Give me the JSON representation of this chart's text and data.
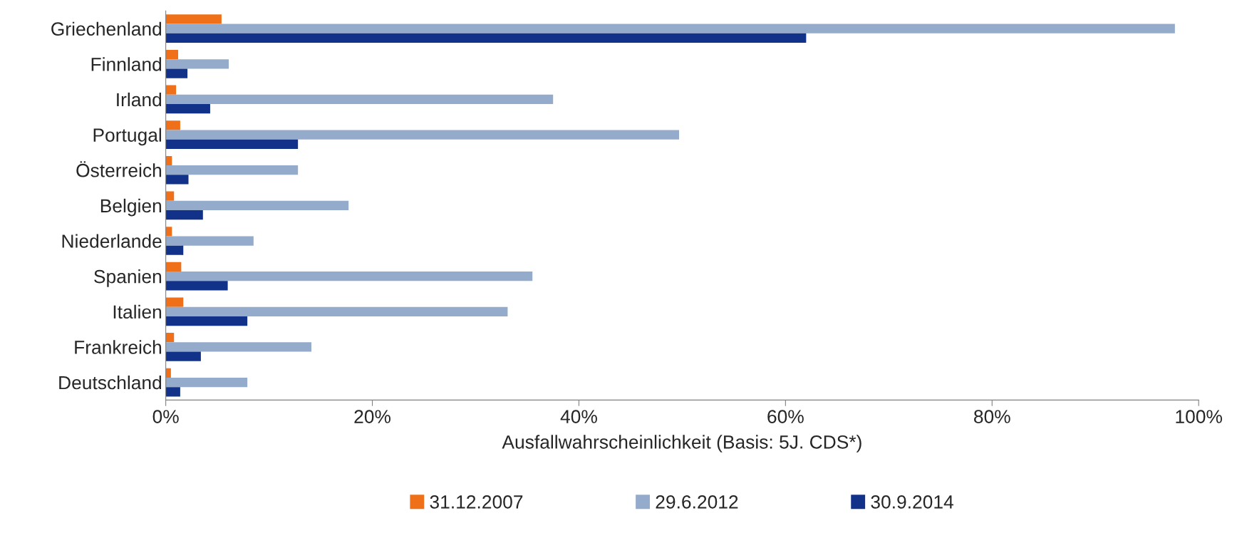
{
  "chart_data": {
    "type": "bar",
    "orientation": "horizontal",
    "xlabel": "Ausfallwahrscheinlichkeit (Basis: 5J. CDS*)",
    "categories": [
      "Griechenland",
      "Finnland",
      "Irland",
      "Portugal",
      "Österreich",
      "Belgien",
      "Niederlande",
      "Spanien",
      "Italien",
      "Frankreich",
      "Deutschland"
    ],
    "series": [
      {
        "name": "31.12.2007",
        "color": "#f07019",
        "values": [
          5.4,
          1.2,
          1.0,
          1.4,
          0.6,
          0.8,
          0.6,
          1.5,
          1.7,
          0.8,
          0.5
        ]
      },
      {
        "name": "29.6.2012",
        "color": "#95abcb",
        "values": [
          97.7,
          6.1,
          37.5,
          49.7,
          12.8,
          17.7,
          8.5,
          35.5,
          33.1,
          14.1,
          7.9
        ]
      },
      {
        "name": "30.9.2014",
        "color": "#12328a",
        "values": [
          62.0,
          2.1,
          4.3,
          12.8,
          2.2,
          3.6,
          1.7,
          6.0,
          7.9,
          3.4,
          1.4
        ]
      }
    ],
    "xlim": [
      0,
      100
    ],
    "xticks": [
      {
        "value": 0,
        "label": "0%"
      },
      {
        "value": 20,
        "label": "20%"
      },
      {
        "value": 40,
        "label": "40%"
      },
      {
        "value": 60,
        "label": "60%"
      },
      {
        "value": 80,
        "label": "80%"
      },
      {
        "value": 100,
        "label": "100%"
      }
    ],
    "grid": false,
    "legend": "bottom"
  }
}
